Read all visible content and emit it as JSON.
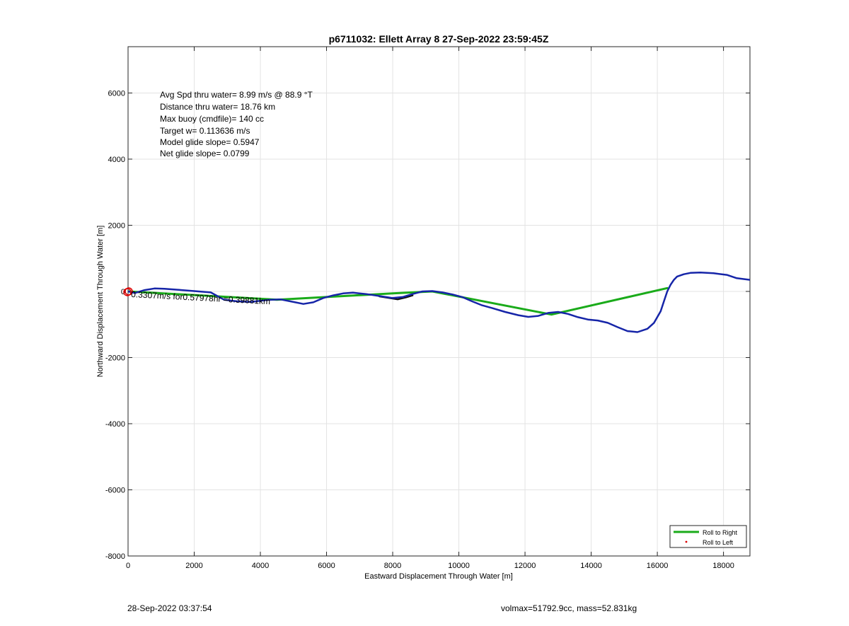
{
  "chart_data": {
    "type": "line",
    "title": "p6711032: Ellett Array 8 27-Sep-2022 23:59:45Z",
    "xlabel": "Eastward Displacement Through Water [m]",
    "ylabel": "Northward Displacement Through Water [m]",
    "xlim": [
      0,
      18800
    ],
    "ylim": [
      -8000,
      7400
    ],
    "xticks": [
      0,
      2000,
      4000,
      6000,
      8000,
      10000,
      12000,
      14000,
      16000,
      18000
    ],
    "yticks": [
      -8000,
      -6000,
      -4000,
      -2000,
      0,
      2000,
      4000,
      6000
    ],
    "grid": true,
    "legend_position": "bottom-right",
    "stats_lines": [
      "Avg Spd thru water=  8.99 m/s @  88.9 °T",
      "Distance thru water= 18.76 km",
      "Max buoy (cmdfile)= 140 cc",
      "Target w= 0.113636 m/s",
      "Model glide slope= 0.5947",
      "Net glide slope= 0.0799"
    ],
    "annotation": "0.3307m/s for0.57978hr =0.39881km",
    "series": [
      {
        "name": "Roll to Right",
        "color": "#1aab1a",
        "x": [
          0,
          4500,
          8000,
          9200,
          12800,
          16300
        ],
        "y": [
          0,
          -250,
          -60,
          0,
          -700,
          100
        ]
      },
      {
        "name": "Roll to Left",
        "color": "#dd0000",
        "x": [],
        "y": []
      },
      {
        "color": "#111111",
        "x": [
          7600,
          7900,
          8150,
          8400,
          8600
        ],
        "y": [
          -150,
          -200,
          -240,
          -180,
          -120
        ]
      },
      {
        "color": "#1625a8",
        "x": [
          0,
          200,
          500,
          800,
          1100,
          1500,
          2000,
          2500,
          2900,
          3300,
          3700,
          4200,
          4600,
          5000,
          5300,
          5600,
          5900,
          6200,
          6500,
          6800,
          7200,
          7600,
          8000,
          8300,
          8600,
          8900,
          9200,
          9500,
          9800,
          10100,
          10400,
          10700,
          11000,
          11400,
          11800,
          12100,
          12400,
          12700,
          13000,
          13300,
          13600,
          13900,
          14200,
          14500,
          14800,
          15100,
          15400,
          15700,
          15900,
          16100,
          16200,
          16300,
          16400,
          16500,
          16600,
          16800,
          17000,
          17300,
          17700,
          18100,
          18400,
          18800
        ],
        "y": [
          0,
          -50,
          40,
          90,
          80,
          50,
          10,
          -30,
          -250,
          -300,
          -320,
          -260,
          -240,
          -320,
          -380,
          -330,
          -200,
          -120,
          -60,
          -40,
          -80,
          -140,
          -200,
          -170,
          -80,
          0,
          10,
          -30,
          -90,
          -170,
          -300,
          -420,
          -500,
          -620,
          -720,
          -770,
          -740,
          -650,
          -620,
          -680,
          -780,
          -850,
          -880,
          -950,
          -1080,
          -1200,
          -1230,
          -1130,
          -950,
          -600,
          -300,
          0,
          200,
          350,
          450,
          520,
          560,
          570,
          550,
          500,
          400,
          350
        ]
      }
    ],
    "marker": {
      "x": 0,
      "y": 0,
      "color": "#dd0000"
    }
  },
  "footer": {
    "left": "28-Sep-2022 03:37:54",
    "right": "volmax=51792.9cc, mass=52.831kg"
  }
}
